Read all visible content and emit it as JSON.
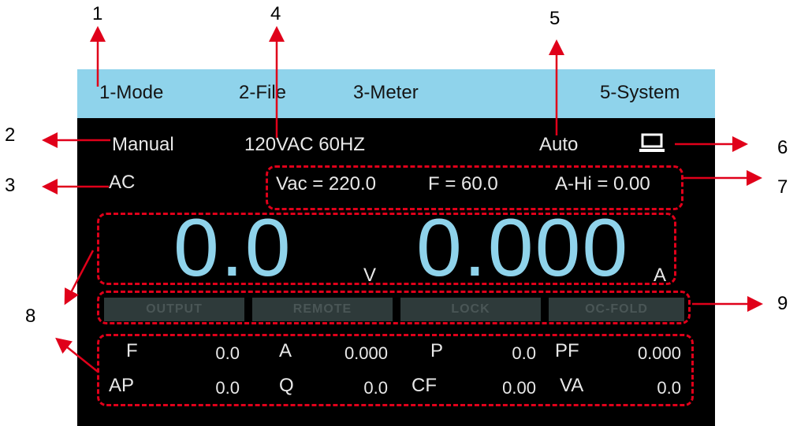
{
  "menu": {
    "items": [
      {
        "label": "1-Mode"
      },
      {
        "label": "2-File"
      },
      {
        "label": "3-Meter"
      },
      {
        "label": "5-System"
      }
    ]
  },
  "status": {
    "mode": "Manual",
    "range": "120VAC 60HZ",
    "sense": "Auto",
    "coupling": "AC",
    "remote_icon": "laptop-icon"
  },
  "settings": {
    "vac": "Vac = 220.0",
    "freq": "F = 60.0",
    "ahi": "A-Hi = 0.00"
  },
  "readout": {
    "voltage": "0.0",
    "voltage_unit": "V",
    "current": "0.000",
    "current_unit": "A"
  },
  "indicators": [
    {
      "label": "OUTPUT"
    },
    {
      "label": "REMOTE"
    },
    {
      "label": "LOCK"
    },
    {
      "label": "OC-FOLD"
    }
  ],
  "measurements": {
    "row1": [
      {
        "name": "F",
        "value": "0.0"
      },
      {
        "name": "A",
        "value": "0.000"
      },
      {
        "name": "P",
        "value": "0.0"
      },
      {
        "name": "PF",
        "value": "0.000"
      }
    ],
    "row2": [
      {
        "name": "AP",
        "value": "0.0"
      },
      {
        "name": "Q",
        "value": "0.0"
      },
      {
        "name": "CF",
        "value": "0.00"
      },
      {
        "name": "VA",
        "value": "0.0"
      }
    ]
  },
  "callouts": [
    "1",
    "2",
    "3",
    "4",
    "5",
    "6",
    "7",
    "8",
    "9"
  ],
  "colors": {
    "menu_bar": "#8fd3eb",
    "big_digits": "#8fd3eb",
    "screen_bg": "#000000",
    "indicator_bg": "#2e3a3a",
    "annotation": "#e0001a"
  }
}
